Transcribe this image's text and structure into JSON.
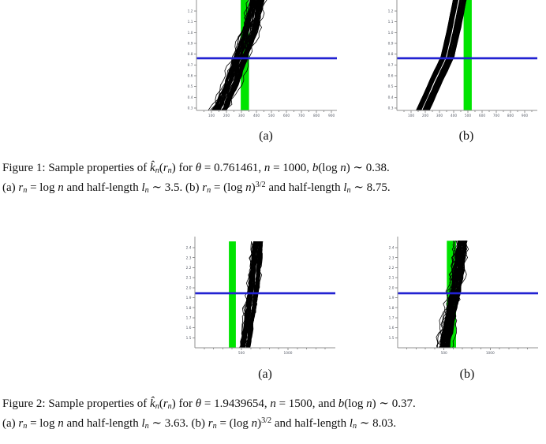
{
  "page": {
    "background": "#ffffff"
  },
  "colors": {
    "band_green": "#00e400",
    "line_blue": "#2222d2",
    "curve_black": "#000000",
    "axis_gray": "#909090",
    "tick_label": "#555a66"
  },
  "figures": [
    {
      "name": "Figure 1",
      "subplot_a_label": "(a)",
      "subplot_b_label": "(b)",
      "caption_line1": [
        {
          "t": "Figure 1: Sample properties of ",
          "s": ""
        },
        {
          "t": "k̂",
          "s": "i"
        },
        {
          "t": "n",
          "s": "isub"
        },
        {
          "t": "(",
          "s": ""
        },
        {
          "t": "r",
          "s": "i"
        },
        {
          "t": "n",
          "s": "isub"
        },
        {
          "t": ") for ",
          "s": ""
        },
        {
          "t": "θ",
          "s": "i"
        },
        {
          "t": " = 0.761461, ",
          "s": ""
        },
        {
          "t": "n",
          "s": "i"
        },
        {
          "t": " = 1000, ",
          "s": ""
        },
        {
          "t": "b",
          "s": "i"
        },
        {
          "t": "(log ",
          "s": ""
        },
        {
          "t": "n",
          "s": "i"
        },
        {
          "t": ") ∼ 0.38.",
          "s": ""
        }
      ],
      "caption_line2": [
        {
          "t": "(a) ",
          "s": ""
        },
        {
          "t": "r",
          "s": "i"
        },
        {
          "t": "n",
          "s": "isub"
        },
        {
          "t": " = log ",
          "s": ""
        },
        {
          "t": "n",
          "s": "i"
        },
        {
          "t": " and half-length ",
          "s": ""
        },
        {
          "t": "l",
          "s": "i"
        },
        {
          "t": "n",
          "s": "isub"
        },
        {
          "t": " ∼ 3.5. (b) ",
          "s": ""
        },
        {
          "t": "r",
          "s": "i"
        },
        {
          "t": "n",
          "s": "isub"
        },
        {
          "t": " = (log ",
          "s": ""
        },
        {
          "t": "n",
          "s": "i"
        },
        {
          "t": ")",
          "s": ""
        },
        {
          "t": "3/2",
          "s": "sup"
        },
        {
          "t": " and half-length ",
          "s": ""
        },
        {
          "t": "l",
          "s": "i"
        },
        {
          "t": "n",
          "s": "isub"
        },
        {
          "t": " ∼ 8.75.",
          "s": ""
        }
      ]
    },
    {
      "name": "Figure 2",
      "subplot_a_label": "(a)",
      "subplot_b_label": "(b)",
      "caption_line1": [
        {
          "t": "Figure 2: Sample properties of ",
          "s": ""
        },
        {
          "t": "k̂",
          "s": "i"
        },
        {
          "t": "n",
          "s": "isub"
        },
        {
          "t": "(",
          "s": ""
        },
        {
          "t": "r",
          "s": "i"
        },
        {
          "t": "n",
          "s": "isub"
        },
        {
          "t": ") for ",
          "s": ""
        },
        {
          "t": "θ",
          "s": "i"
        },
        {
          "t": " = 1.9439654, ",
          "s": ""
        },
        {
          "t": "n",
          "s": "i"
        },
        {
          "t": " = 1500, and ",
          "s": ""
        },
        {
          "t": "b",
          "s": "i"
        },
        {
          "t": "(log ",
          "s": ""
        },
        {
          "t": "n",
          "s": "i"
        },
        {
          "t": ") ∼ 0.37.",
          "s": ""
        }
      ],
      "caption_line2": [
        {
          "t": "(a) ",
          "s": ""
        },
        {
          "t": "r",
          "s": "i"
        },
        {
          "t": "n",
          "s": "isub"
        },
        {
          "t": " = log ",
          "s": ""
        },
        {
          "t": "n",
          "s": "i"
        },
        {
          "t": " and half-length ",
          "s": ""
        },
        {
          "t": "l",
          "s": "i"
        },
        {
          "t": "n",
          "s": "isub"
        },
        {
          "t": " ∼ 3.63. (b) ",
          "s": ""
        },
        {
          "t": "r",
          "s": "i"
        },
        {
          "t": "n",
          "s": "isub"
        },
        {
          "t": " = (log ",
          "s": ""
        },
        {
          "t": "n",
          "s": "i"
        },
        {
          "t": ")",
          "s": ""
        },
        {
          "t": "3/2",
          "s": "sup"
        },
        {
          "t": " and half-length ",
          "s": ""
        },
        {
          "t": "l",
          "s": "i"
        },
        {
          "t": "n",
          "s": "isub"
        },
        {
          "t": " ∼ 8.03.",
          "s": ""
        }
      ]
    }
  ],
  "chart_data": [
    {
      "id": "fig1a",
      "type": "line",
      "title": "",
      "xlabel": "",
      "ylabel": "",
      "xlim": [
        0,
        926
      ],
      "ylim": [
        0.278,
        1.302
      ],
      "x_ticks": {
        "values": [
          100,
          200,
          300,
          400,
          500,
          600,
          700,
          800,
          900
        ],
        "labels": [
          "100",
          "200",
          "300",
          "400",
          "500",
          "600",
          "700",
          "800",
          "900"
        ],
        "minor_step": 50
      },
      "y_ticks": {
        "values": [
          0.3,
          0.4,
          0.5,
          0.6,
          0.7,
          0.8,
          0.9,
          1.0,
          1.1,
          1.2
        ],
        "labels": [
          "0.3",
          "0.4",
          "0.5",
          "0.6",
          "0.7",
          "0.8",
          "0.9",
          "1.0",
          "1.1",
          "1.2"
        ]
      },
      "hline": 0.761461,
      "vband": {
        "x": [
          295,
          350
        ],
        "y_top": null
      },
      "curves": {
        "description": "bundle of sample paths of k-hat_n(r) vs r",
        "centerline": [
          [
            105,
            0.2
          ],
          [
            163,
            0.295
          ],
          [
            237,
            0.536
          ],
          [
            295,
            0.77
          ],
          [
            358,
            1.01
          ],
          [
            400,
            1.27
          ],
          [
            418,
            1.36
          ]
        ],
        "half_width": 40,
        "wiggle": 16,
        "n": 55,
        "seed": 7,
        "outlier_every": 7
      }
    },
    {
      "id": "fig1b",
      "type": "line",
      "title": "",
      "xlabel": "",
      "ylabel": "",
      "xlim": [
        0,
        978
      ],
      "ylim": [
        0.278,
        1.302
      ],
      "x_ticks": {
        "values": [
          100,
          200,
          300,
          400,
          500,
          600,
          700,
          800,
          900
        ],
        "labels": [
          "100",
          "200",
          "300",
          "400",
          "500",
          "600",
          "700",
          "800",
          "900"
        ],
        "minor_step": 50
      },
      "y_ticks": {
        "values": [
          0.3,
          0.4,
          0.5,
          0.6,
          0.7,
          0.8,
          0.9,
          1.0,
          1.1,
          1.2
        ],
        "labels": [
          "0.3",
          "0.4",
          "0.5",
          "0.6",
          "0.7",
          "0.8",
          "0.9",
          "1.0",
          "1.1",
          "1.2"
        ]
      },
      "hline": 0.761461,
      "vband": {
        "x": [
          470,
          527
        ],
        "y_top": null
      },
      "curves": {
        "description": "smooth bundle of sample paths",
        "centerline": [
          [
            150,
            0.2
          ],
          [
            189,
            0.295
          ],
          [
            283,
            0.572
          ],
          [
            356,
            0.77
          ],
          [
            406,
            1.06
          ],
          [
            438,
            1.27
          ],
          [
            452,
            1.36
          ]
        ],
        "half_width": 45,
        "wiggle": 3,
        "n": 55,
        "seed": 8,
        "outlier_every": 0
      }
    },
    {
      "id": "fig2a",
      "type": "line",
      "title": "",
      "xlabel": "",
      "ylabel": "",
      "xlim": [
        0,
        1492
      ],
      "ylim": [
        1.4,
        2.51
      ],
      "x_ticks": {
        "values": [
          500,
          1000
        ],
        "labels": [
          "500",
          "1000"
        ],
        "minor_step": 100
      },
      "y_ticks": {
        "values": [
          1.5,
          1.6,
          1.7,
          1.8,
          1.9,
          2.0,
          2.1,
          2.2,
          2.3,
          2.4
        ],
        "labels": [
          "1.5",
          "1.6",
          "1.7",
          "1.8",
          "1.9",
          "2.0",
          "2.1",
          "2.2",
          "2.3",
          "2.4"
        ]
      },
      "hline": 1.9439654,
      "vband": {
        "x": [
          365,
          440
        ],
        "y_top": 2.462
      },
      "curves": {
        "description": "steep bundle of sample paths",
        "centerline": [
          [
            535,
            1.38
          ],
          [
            551,
            1.474
          ],
          [
            590,
            1.72
          ],
          [
            627,
            1.96
          ],
          [
            653,
            2.2
          ],
          [
            675,
            2.462
          ]
        ],
        "half_width": 48,
        "wiggle": 20,
        "n": 55,
        "seed": 9,
        "outlier_every": 9
      }
    },
    {
      "id": "fig2b",
      "type": "line",
      "title": "",
      "xlabel": "",
      "ylabel": "",
      "xlim": [
        0,
        1500
      ],
      "ylim": [
        1.4,
        2.51
      ],
      "x_ticks": {
        "values": [
          500,
          1000
        ],
        "labels": [
          "500",
          "1000"
        ],
        "minor_step": 100
      },
      "y_ticks": {
        "values": [
          1.5,
          1.6,
          1.7,
          1.8,
          1.9,
          2.0,
          2.1,
          2.2,
          2.3,
          2.4
        ],
        "labels": [
          "1.5",
          "1.6",
          "1.7",
          "1.8",
          "1.9",
          "2.0",
          "2.1",
          "2.2",
          "2.3",
          "2.4"
        ]
      },
      "hline": 1.9439654,
      "vband": {
        "x": [
          531,
          631
        ],
        "y_top": 2.468
      },
      "curves": {
        "description": "steep ragged bundle overlapping the green band",
        "centerline": [
          [
            508,
            1.38
          ],
          [
            520,
            1.474
          ],
          [
            572,
            1.72
          ],
          [
            623,
            1.96
          ],
          [
            662,
            2.2
          ],
          [
            700,
            2.468
          ]
        ],
        "half_width": 45,
        "wiggle": 28,
        "n": 55,
        "seed": 10,
        "outlier_every": 6
      }
    }
  ]
}
